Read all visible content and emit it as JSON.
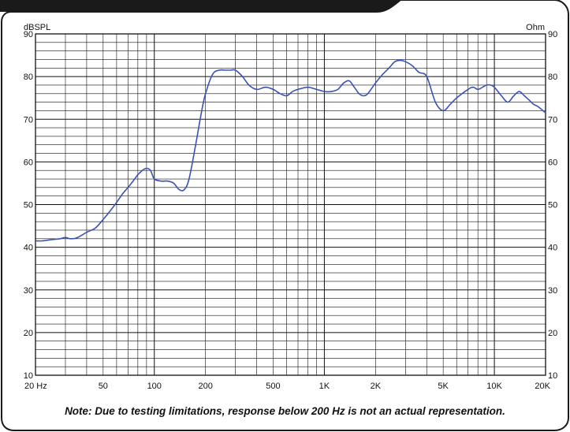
{
  "chart_data": {
    "type": "line",
    "x_scale": "log",
    "xlim": [
      20,
      20000
    ],
    "ylim": [
      10,
      90
    ],
    "left_axis_unit": "dBSPL",
    "right_axis_unit": "Ohm",
    "y_ticks": [
      10,
      20,
      30,
      40,
      50,
      60,
      70,
      80,
      90
    ],
    "x_tick_labels": [
      {
        "value": 20,
        "label": "20 Hz"
      },
      {
        "value": 50,
        "label": "50"
      },
      {
        "value": 100,
        "label": "100"
      },
      {
        "value": 200,
        "label": "200"
      },
      {
        "value": 500,
        "label": "500"
      },
      {
        "value": 1000,
        "label": "1K"
      },
      {
        "value": 2000,
        "label": "2K"
      },
      {
        "value": 5000,
        "label": "5K"
      },
      {
        "value": 10000,
        "label": "10K"
      },
      {
        "value": 20000,
        "label": "20K"
      }
    ],
    "grid": true,
    "line_color": "#3b52b5",
    "series": [
      {
        "x": [
          20,
          22,
          25,
          28,
          30,
          32,
          35,
          40,
          45,
          50,
          55,
          60,
          65,
          70,
          75,
          80,
          85,
          90,
          95,
          100,
          110,
          120,
          130,
          140,
          150,
          160,
          175,
          190,
          200,
          220,
          240,
          260,
          280,
          300,
          330,
          360,
          400,
          450,
          500,
          550,
          600,
          650,
          700,
          800,
          900,
          1000,
          1100,
          1200,
          1300,
          1400,
          1500,
          1600,
          1700,
          1800,
          2000,
          2200,
          2400,
          2600,
          2800,
          3000,
          3300,
          3600,
          4000,
          4500,
          5000,
          5500,
          6000,
          7000,
          7500,
          8000,
          8500,
          9000,
          9500,
          10000,
          11000,
          12000,
          13000,
          14000,
          15000,
          16000,
          17000,
          18000,
          20000
        ],
        "y": [
          41.5,
          41.5,
          41.8,
          42.0,
          42.3,
          42.0,
          42.2,
          43.5,
          44.5,
          46.5,
          48.5,
          50.5,
          52.5,
          54.0,
          55.5,
          57.0,
          58.0,
          58.5,
          58.0,
          56.0,
          55.5,
          55.5,
          55.0,
          53.5,
          53.5,
          56.0,
          64.0,
          72.0,
          76.0,
          80.5,
          81.5,
          81.5,
          81.5,
          81.5,
          80.0,
          78.0,
          77.0,
          77.5,
          77.0,
          76.0,
          75.5,
          76.5,
          77.0,
          77.5,
          77.0,
          76.5,
          76.5,
          77.0,
          78.5,
          79.0,
          77.5,
          76.0,
          75.5,
          76.0,
          78.5,
          80.5,
          82.0,
          83.5,
          83.8,
          83.5,
          82.5,
          81.0,
          80.0,
          74.0,
          72.0,
          73.5,
          75.0,
          77.0,
          77.5,
          77.0,
          77.5,
          78.0,
          78.0,
          77.5,
          75.5,
          74.0,
          75.5,
          76.5,
          75.5,
          74.5,
          73.5,
          73.0,
          71.5
        ]
      }
    ],
    "note": "Note:  Due to testing limitations, response below 200 Hz is not an actual representation."
  }
}
